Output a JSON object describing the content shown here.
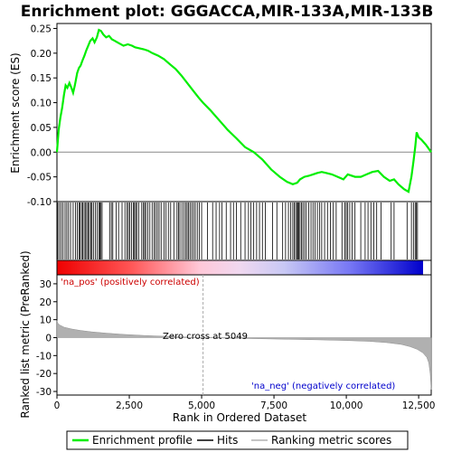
{
  "title": "Enrichment plot: GGGACCA,MIR-133A,MIR-133B",
  "colors": {
    "enrichment_line": "#00ee00",
    "hits": "#000000",
    "metric_fill": "#b0b0b0",
    "pos_text": "#cc0000",
    "neg_text": "#0000cc",
    "zero_line": "#aaaaaa"
  },
  "chart_data": [
    {
      "type": "line",
      "name": "enrichment-score-panel",
      "ylabel": "Enrichment score (ES)",
      "xlim": [
        0,
        12934
      ],
      "ylim": [
        -0.1,
        0.26
      ],
      "yticks": [
        -0.1,
        -0.05,
        0.0,
        0.05,
        0.1,
        0.15,
        0.2,
        0.25
      ],
      "ytick_labels": [
        "-0.10",
        "-0.05",
        "0.00",
        "0.05",
        "0.10",
        "0.15",
        "0.20",
        "0.25"
      ],
      "grid": false,
      "series": [
        {
          "name": "Enrichment profile",
          "x": [
            0,
            60,
            120,
            180,
            240,
            300,
            360,
            430,
            500,
            560,
            620,
            700,
            760,
            820,
            880,
            950,
            1010,
            1080,
            1150,
            1230,
            1300,
            1380,
            1450,
            1520,
            1600,
            1700,
            1800,
            1900,
            2000,
            2150,
            2300,
            2450,
            2600,
            2700,
            2850,
            3000,
            3150,
            3300,
            3500,
            3700,
            3900,
            4100,
            4300,
            4500,
            4700,
            4900,
            5049,
            5300,
            5600,
            5900,
            6200,
            6500,
            6800,
            7100,
            7400,
            7700,
            7950,
            8150,
            8300,
            8400,
            8550,
            8700,
            8850,
            9000,
            9150,
            9300,
            9500,
            9700,
            9900,
            10050,
            10300,
            10500,
            10700,
            10900,
            11100,
            11300,
            11500,
            11650,
            11800,
            12000,
            12150,
            12250,
            12320,
            12380,
            12430,
            12500,
            12600,
            12750,
            12934
          ],
          "y": [
            0.0,
            0.045,
            0.07,
            0.09,
            0.115,
            0.135,
            0.13,
            0.14,
            0.13,
            0.12,
            0.135,
            0.16,
            0.17,
            0.175,
            0.185,
            0.195,
            0.205,
            0.215,
            0.225,
            0.23,
            0.222,
            0.232,
            0.247,
            0.245,
            0.238,
            0.232,
            0.235,
            0.228,
            0.225,
            0.22,
            0.215,
            0.218,
            0.215,
            0.212,
            0.21,
            0.208,
            0.205,
            0.2,
            0.195,
            0.188,
            0.178,
            0.168,
            0.155,
            0.14,
            0.125,
            0.11,
            0.1,
            0.085,
            0.065,
            0.045,
            0.028,
            0.01,
            0.0,
            -0.015,
            -0.035,
            -0.05,
            -0.06,
            -0.065,
            -0.062,
            -0.055,
            -0.05,
            -0.048,
            -0.045,
            -0.042,
            -0.04,
            -0.042,
            -0.045,
            -0.05,
            -0.055,
            -0.045,
            -0.05,
            -0.05,
            -0.045,
            -0.04,
            -0.038,
            -0.05,
            -0.058,
            -0.055,
            -0.065,
            -0.075,
            -0.08,
            -0.05,
            -0.02,
            0.01,
            0.04,
            0.03,
            0.025,
            0.015,
            0.0
          ]
        }
      ],
      "hits": [
        30,
        90,
        150,
        210,
        280,
        340,
        400,
        470,
        560,
        640,
        700,
        760,
        800,
        850,
        890,
        940,
        990,
        1030,
        1080,
        1120,
        1170,
        1210,
        1260,
        1330,
        1390,
        1450,
        1480,
        1520,
        1560,
        1820,
        1880,
        1930,
        2050,
        2130,
        2250,
        2350,
        2420,
        2470,
        2520,
        2580,
        2640,
        2680,
        2720,
        2760,
        2830,
        2930,
        2990,
        3030,
        3070,
        3140,
        3210,
        3290,
        3360,
        3410,
        3470,
        3530,
        3600,
        3700,
        3770,
        3850,
        3930,
        4040,
        4150,
        4200,
        4250,
        4320,
        4390,
        4450,
        4500,
        4550,
        4600,
        4660,
        4720,
        4780,
        4850,
        4920,
        5000,
        5200,
        5380,
        5500,
        5620,
        5700,
        5850,
        6000,
        6100,
        6200,
        6350,
        6500,
        6620,
        6700,
        6800,
        6900,
        7000,
        7100,
        7200,
        7450,
        7600,
        7800,
        7900,
        8000,
        8080,
        8150,
        8200,
        8250,
        8300,
        8330,
        8360,
        8400,
        8450,
        8500,
        8560,
        8620,
        8700,
        8780,
        8850,
        8920,
        9000,
        9080,
        9150,
        9250,
        9350,
        9450,
        9550,
        9650,
        9850,
        9950,
        10000,
        10050,
        10120,
        10200,
        10300,
        10500,
        10650,
        10750,
        10850,
        10950,
        11050,
        11200,
        11550,
        11650,
        12100,
        12250,
        12320,
        12380,
        12420,
        12460
      ]
    },
    {
      "type": "area",
      "name": "ranked-list-metric-panel",
      "xlabel": "Rank in Ordered Dataset",
      "ylabel": "Ranked list metric (PreRanked)",
      "xlim": [
        0,
        12934
      ],
      "ylim": [
        -32,
        35
      ],
      "xticks": [
        0,
        2500,
        5000,
        7500,
        10000,
        12500
      ],
      "xtick_labels": [
        "0",
        "2,500",
        "5,000",
        "7,500",
        "10,000",
        "12,500"
      ],
      "yticks": [
        -30,
        -20,
        -10,
        0,
        10,
        20,
        30
      ],
      "ytick_labels": [
        "-30",
        "-20",
        "-10",
        "0",
        "10",
        "20",
        "30"
      ],
      "series": [
        {
          "name": "Ranking metric scores",
          "x": [
            0,
            30,
            100,
            250,
            500,
            800,
            1200,
            1700,
            2300,
            3000,
            3800,
            4500,
            5049,
            6000,
            7000,
            8000,
            9000,
            10000,
            10800,
            11400,
            11900,
            12200,
            12450,
            12650,
            12780,
            12850,
            12900,
            12934
          ],
          "y": [
            9.5,
            8.0,
            7.0,
            5.8,
            4.8,
            4.0,
            3.2,
            2.5,
            1.8,
            1.2,
            0.7,
            0.3,
            0.0,
            -0.3,
            -0.6,
            -0.9,
            -1.2,
            -1.6,
            -2.1,
            -2.8,
            -3.8,
            -5.0,
            -6.5,
            -8.5,
            -11.0,
            -14.0,
            -20.0,
            -29.0
          ]
        }
      ],
      "zero_cross": 5049,
      "zero_cross_label": "Zero cross at 5049",
      "pos_label": "'na_pos' (positively correlated)",
      "neg_label": "'na_neg' (negatively correlated)"
    }
  ],
  "legend": {
    "items": [
      "Enrichment profile",
      "Hits",
      "Ranking metric scores"
    ]
  }
}
